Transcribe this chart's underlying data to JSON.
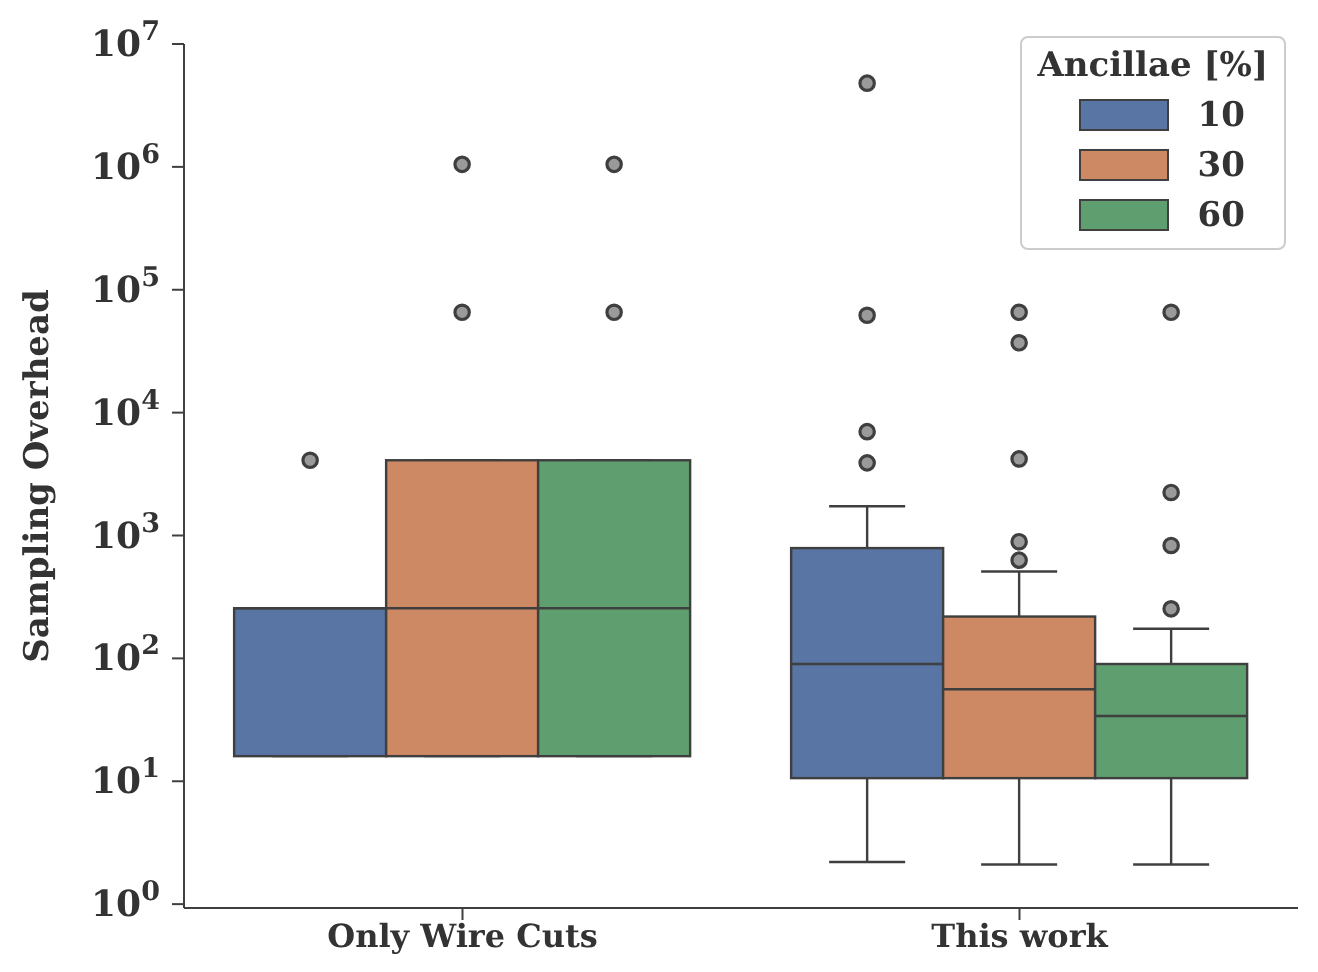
{
  "chart_data": {
    "type": "box",
    "ylabel": "Sampling Overhead",
    "legend_title": "Ancillae [%]",
    "legend": "top right",
    "log": "y",
    "categories": [
      "Only Wire Cuts",
      "This work"
    ],
    "ylim": [
      0.93,
      10000000
    ],
    "yticks": [
      {
        "value": 1,
        "label": "10$^{0}$"
      },
      {
        "value": 10,
        "label": "10$^{1}$"
      },
      {
        "value": 100,
        "label": "10$^{2}$"
      },
      {
        "value": 1000,
        "label": "10$^{3}$"
      },
      {
        "value": 10000,
        "label": "10$^{4}$"
      },
      {
        "value": 100000,
        "label": "10$^{5}$"
      },
      {
        "value": 1000000,
        "label": "10$^{6}$"
      },
      {
        "value": 10000000,
        "label": "10$^{7}$"
      }
    ],
    "series": [
      {
        "name": "10",
        "color": "#5975a4",
        "boxes": [
          {
            "low": 16,
            "q1": 16,
            "median": 256,
            "q3": 256,
            "high": 256,
            "outliers": [
              4096
            ]
          },
          {
            "low": 2.2,
            "q1": 10.6,
            "median": 90,
            "q3": 790,
            "high": 1730,
            "outliers": [
              3900,
              7000,
              62000,
              4800000
            ]
          }
        ]
      },
      {
        "name": "30",
        "color": "#cc8963",
        "boxes": [
          {
            "low": 16,
            "q1": 16,
            "median": 256,
            "q3": 4096,
            "high": 4096,
            "outliers": [
              65536,
              1048576
            ]
          },
          {
            "low": 2.1,
            "q1": 10.6,
            "median": 56,
            "q3": 219,
            "high": 510,
            "outliers": [
              630,
              890,
              4200,
              37000,
              65536
            ]
          }
        ]
      },
      {
        "name": "60",
        "color": "#5f9e6e",
        "boxes": [
          {
            "low": 16,
            "q1": 16,
            "median": 256,
            "q3": 4096,
            "high": 4096,
            "outliers": [
              65536,
              1048576
            ]
          },
          {
            "low": 2.1,
            "q1": 10.6,
            "median": 34,
            "q3": 90,
            "high": 174,
            "outliers": [
              253,
              830,
              2240,
              65536
            ]
          }
        ]
      }
    ]
  }
}
